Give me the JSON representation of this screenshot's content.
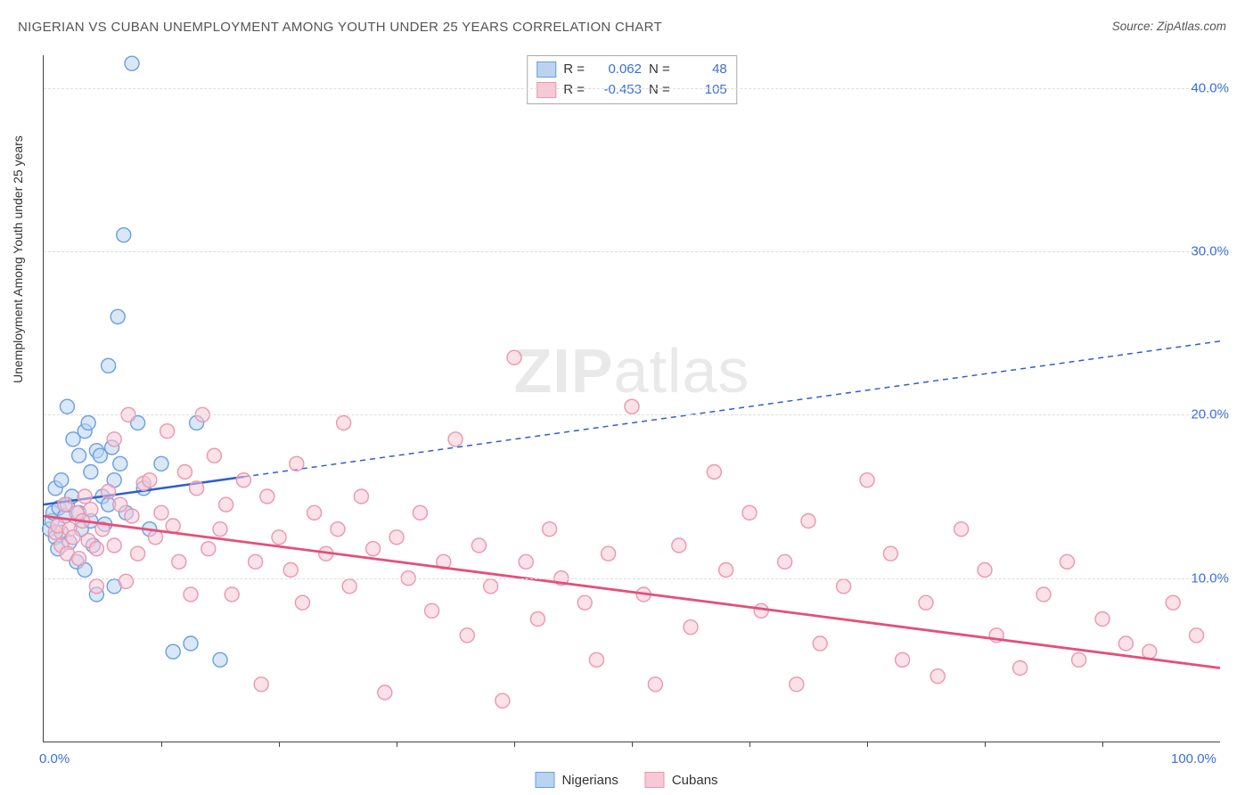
{
  "title": "NIGERIAN VS CUBAN UNEMPLOYMENT AMONG YOUTH UNDER 25 YEARS CORRELATION CHART",
  "source": "Source: ZipAtlas.com",
  "watermark_a": "ZIP",
  "watermark_b": "atlas",
  "ylabel": "Unemployment Among Youth under 25 years",
  "chart": {
    "type": "scatter",
    "xlim": [
      0,
      100
    ],
    "ylim": [
      0,
      42
    ],
    "xtick_labels": {
      "0": "0.0%",
      "100": "100.0%"
    },
    "xtick_marks": [
      10,
      20,
      30,
      40,
      50,
      60,
      70,
      80,
      90
    ],
    "yticks": [
      10,
      20,
      30,
      40
    ],
    "ytick_labels": {
      "10": "10.0%",
      "20": "20.0%",
      "30": "30.0%",
      "40": "40.0%"
    },
    "background": "#ffffff",
    "grid_color": "#dddddd",
    "axis_color": "#444444",
    "tick_label_color": "#3b6fd6",
    "marker_radius": 8,
    "marker_stroke_width": 1.4,
    "series": [
      {
        "name": "Nigerians",
        "fill": "#b9d3f0",
        "fill_opacity": 0.55,
        "stroke": "#6a9fe0",
        "trend": {
          "x1": 0,
          "y1": 14.5,
          "x2": 100,
          "y2": 24.5,
          "solid_until_x": 17,
          "color": "#2e5fd0",
          "width": 2.5,
          "dash": "6 5"
        },
        "R_label": "R =",
        "R": "0.062",
        "N_label": "N =",
        "N": "48",
        "points": [
          [
            0.5,
            13.0
          ],
          [
            0.7,
            13.5
          ],
          [
            0.8,
            14.0
          ],
          [
            1.0,
            12.5
          ],
          [
            1.0,
            15.5
          ],
          [
            1.2,
            11.8
          ],
          [
            1.3,
            14.3
          ],
          [
            1.5,
            12.8
          ],
          [
            1.5,
            16.0
          ],
          [
            1.8,
            13.8
          ],
          [
            2.0,
            20.5
          ],
          [
            2.0,
            14.5
          ],
          [
            2.2,
            12.2
          ],
          [
            2.4,
            15.0
          ],
          [
            2.5,
            18.5
          ],
          [
            2.8,
            11.0
          ],
          [
            3.0,
            17.5
          ],
          [
            3.0,
            14.0
          ],
          [
            3.2,
            13.0
          ],
          [
            3.5,
            10.5
          ],
          [
            3.5,
            19.0
          ],
          [
            3.8,
            19.5
          ],
          [
            4.0,
            13.5
          ],
          [
            4.0,
            16.5
          ],
          [
            4.2,
            12.0
          ],
          [
            4.5,
            17.8
          ],
          [
            4.5,
            9.0
          ],
          [
            4.8,
            17.5
          ],
          [
            5.0,
            15.0
          ],
          [
            5.2,
            13.3
          ],
          [
            5.5,
            23.0
          ],
          [
            5.5,
            14.5
          ],
          [
            5.8,
            18.0
          ],
          [
            6.0,
            9.5
          ],
          [
            6.0,
            16.0
          ],
          [
            6.3,
            26.0
          ],
          [
            6.5,
            17.0
          ],
          [
            6.8,
            31.0
          ],
          [
            7.0,
            14.0
          ],
          [
            7.5,
            41.5
          ],
          [
            8.0,
            19.5
          ],
          [
            8.5,
            15.5
          ],
          [
            9.0,
            13.0
          ],
          [
            10.0,
            17.0
          ],
          [
            11.0,
            5.5
          ],
          [
            12.5,
            6.0
          ],
          [
            13.0,
            19.5
          ],
          [
            15.0,
            5.0
          ]
        ]
      },
      {
        "name": "Cubans",
        "fill": "#f7c8d5",
        "fill_opacity": 0.55,
        "stroke": "#e997b0",
        "trend": {
          "x1": 0,
          "y1": 13.8,
          "x2": 100,
          "y2": 4.5,
          "solid_until_x": 100,
          "color": "#e54f7a",
          "width": 2.8,
          "dash": ""
        },
        "R_label": "R =",
        "R": "-0.453",
        "N_label": "N =",
        "N": "105",
        "points": [
          [
            1.0,
            12.8
          ],
          [
            1.2,
            13.2
          ],
          [
            1.5,
            12.0
          ],
          [
            1.8,
            14.5
          ],
          [
            2.0,
            11.5
          ],
          [
            2.2,
            13.0
          ],
          [
            2.5,
            12.5
          ],
          [
            2.8,
            14.0
          ],
          [
            3.0,
            11.2
          ],
          [
            3.3,
            13.5
          ],
          [
            3.5,
            15.0
          ],
          [
            3.8,
            12.3
          ],
          [
            4.0,
            14.2
          ],
          [
            4.5,
            11.8
          ],
          [
            4.5,
            9.5
          ],
          [
            5.0,
            13.0
          ],
          [
            5.5,
            15.3
          ],
          [
            6.0,
            18.5
          ],
          [
            6.0,
            12.0
          ],
          [
            6.5,
            14.5
          ],
          [
            7.0,
            9.8
          ],
          [
            7.2,
            20.0
          ],
          [
            7.5,
            13.8
          ],
          [
            8.0,
            11.5
          ],
          [
            8.5,
            15.8
          ],
          [
            9.0,
            16.0
          ],
          [
            9.5,
            12.5
          ],
          [
            10.0,
            14.0
          ],
          [
            10.5,
            19.0
          ],
          [
            11.0,
            13.2
          ],
          [
            11.5,
            11.0
          ],
          [
            12.0,
            16.5
          ],
          [
            12.5,
            9.0
          ],
          [
            13.0,
            15.5
          ],
          [
            13.5,
            20.0
          ],
          [
            14.0,
            11.8
          ],
          [
            14.5,
            17.5
          ],
          [
            15.0,
            13.0
          ],
          [
            15.5,
            14.5
          ],
          [
            16.0,
            9.0
          ],
          [
            17.0,
            16.0
          ],
          [
            18.0,
            11.0
          ],
          [
            18.5,
            3.5
          ],
          [
            19.0,
            15.0
          ],
          [
            20.0,
            12.5
          ],
          [
            21.0,
            10.5
          ],
          [
            21.5,
            17.0
          ],
          [
            22.0,
            8.5
          ],
          [
            23.0,
            14.0
          ],
          [
            24.0,
            11.5
          ],
          [
            25.0,
            13.0
          ],
          [
            25.5,
            19.5
          ],
          [
            26.0,
            9.5
          ],
          [
            27.0,
            15.0
          ],
          [
            28.0,
            11.8
          ],
          [
            29.0,
            3.0
          ],
          [
            30.0,
            12.5
          ],
          [
            31.0,
            10.0
          ],
          [
            32.0,
            14.0
          ],
          [
            33.0,
            8.0
          ],
          [
            34.0,
            11.0
          ],
          [
            35.0,
            18.5
          ],
          [
            36.0,
            6.5
          ],
          [
            37.0,
            12.0
          ],
          [
            38.0,
            9.5
          ],
          [
            39.0,
            2.5
          ],
          [
            40.0,
            23.5
          ],
          [
            41.0,
            11.0
          ],
          [
            42.0,
            7.5
          ],
          [
            43.0,
            13.0
          ],
          [
            44.0,
            10.0
          ],
          [
            46.0,
            8.5
          ],
          [
            47.0,
            5.0
          ],
          [
            48.0,
            11.5
          ],
          [
            50.0,
            20.5
          ],
          [
            51.0,
            9.0
          ],
          [
            52.0,
            3.5
          ],
          [
            54.0,
            12.0
          ],
          [
            55.0,
            7.0
          ],
          [
            57.0,
            16.5
          ],
          [
            58.0,
            10.5
          ],
          [
            60.0,
            14.0
          ],
          [
            61.0,
            8.0
          ],
          [
            63.0,
            11.0
          ],
          [
            64.0,
            3.5
          ],
          [
            65.0,
            13.5
          ],
          [
            66.0,
            6.0
          ],
          [
            68.0,
            9.5
          ],
          [
            70.0,
            16.0
          ],
          [
            72.0,
            11.5
          ],
          [
            73.0,
            5.0
          ],
          [
            75.0,
            8.5
          ],
          [
            76.0,
            4.0
          ],
          [
            78.0,
            13.0
          ],
          [
            80.0,
            10.5
          ],
          [
            81.0,
            6.5
          ],
          [
            83.0,
            4.5
          ],
          [
            85.0,
            9.0
          ],
          [
            87.0,
            11.0
          ],
          [
            88.0,
            5.0
          ],
          [
            90.0,
            7.5
          ],
          [
            92.0,
            6.0
          ],
          [
            94.0,
            5.5
          ],
          [
            96.0,
            8.5
          ],
          [
            98.0,
            6.5
          ]
        ]
      }
    ]
  },
  "legend": {
    "items": [
      "Nigerians",
      "Cubans"
    ]
  }
}
